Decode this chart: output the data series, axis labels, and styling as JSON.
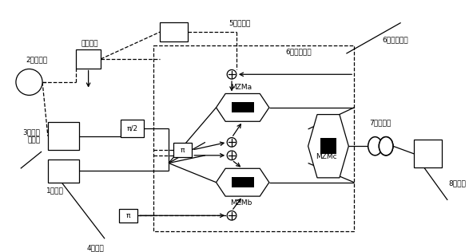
{
  "bg_color": "#ffffff",
  "line_color": "#000000",
  "labels": {
    "laser": "1激光器",
    "rf": "2射频信号",
    "phase_mod": "3电相位\n调制器",
    "phase_shifter": "4移相器",
    "amp": "5电增益器",
    "integrated": "6集成调制器",
    "smf": "7单模光纤",
    "detector": "8探测器",
    "data": "数据信号",
    "MZMa": "MZMa",
    "MZMb": "MZMb",
    "MZMc": "MZMc"
  }
}
